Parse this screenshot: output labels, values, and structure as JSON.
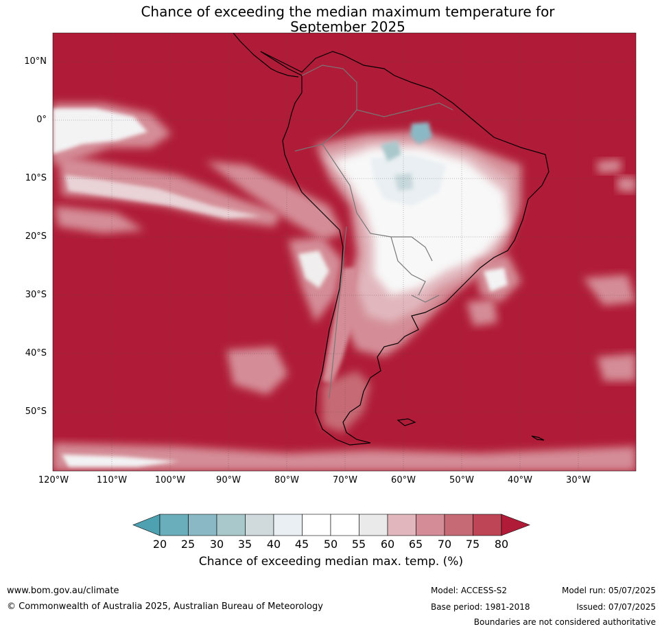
{
  "title": {
    "line1": "Chance of exceeding the median maximum temperature for",
    "line2": "September 2025"
  },
  "map": {
    "lat_labels": [
      "10°N",
      "0°",
      "10°S",
      "20°S",
      "30°S",
      "40°S",
      "50°S"
    ],
    "lon_labels": [
      "120°W",
      "110°W",
      "100°W",
      "90°W",
      "80°W",
      "70°W",
      "60°W",
      "50°W",
      "40°W",
      "30°W"
    ],
    "ocean_color": "#b01c37"
  },
  "colorbar": {
    "ticks": [
      "20",
      "25",
      "30",
      "35",
      "40",
      "45",
      "50",
      "55",
      "60",
      "65",
      "70",
      "75",
      "80"
    ],
    "colors": [
      "#4ea1b0",
      "#6aaebb",
      "#8ab9c5",
      "#a9c8cc",
      "#d0d9db",
      "#e9eff2",
      "#ffffff",
      "#ffffff",
      "#eaeaeb",
      "#e1b7bd",
      "#d48d96",
      "#c66a75",
      "#be4555",
      "#b01c37"
    ],
    "label": "Chance of exceeding median max. temp. (%)"
  },
  "footer": {
    "url": "www.bom.gov.au/climate",
    "copyright": "© Commonwealth of Australia 2025, Australian Bureau of Meteorology",
    "model": "Model: ACCESS-S2",
    "base_period": "Base period: 1981-2018",
    "model_run": "Model run: 05/07/2025",
    "issued": "Issued: 07/07/2025",
    "disclaimer": "Boundaries are not considered authoritative"
  }
}
